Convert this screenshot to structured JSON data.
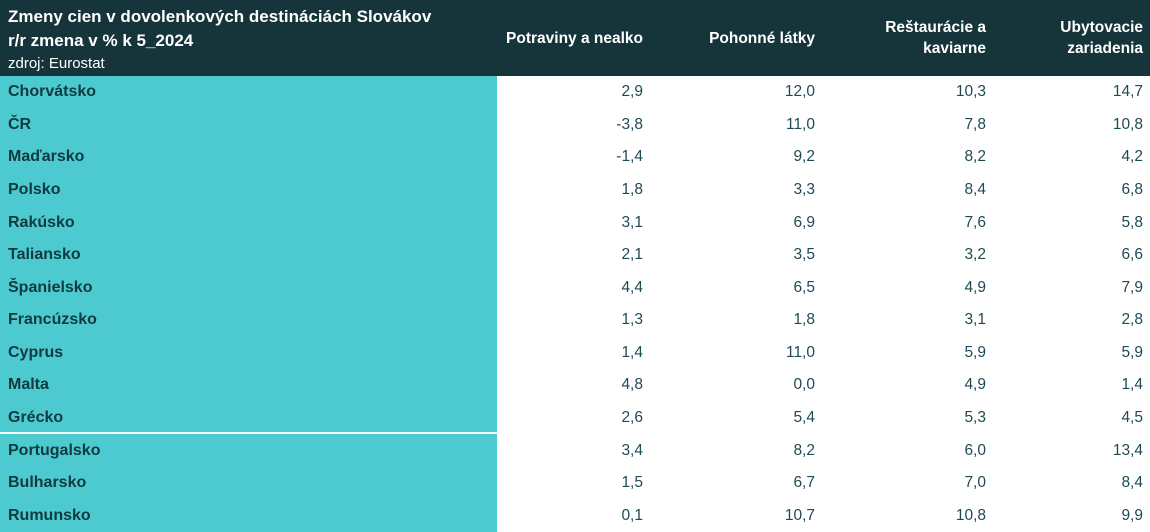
{
  "header": {
    "title_line1": "Zmeny cien v dovolenkových destináciách Slovákov",
    "title_line2": "r/r zmena v % k 5_2024",
    "source": "zdroj: Eurostat"
  },
  "columns": [
    "Potraviny a nealko",
    "Pohonné látky",
    "Reštaurácie a kaviarne",
    "Ubytovacie zariadenia"
  ],
  "table": {
    "separator_after_index": 10,
    "rows": [
      {
        "country": "Chorvátsko",
        "values": [
          "2,9",
          "12,0",
          "10,3",
          "14,7"
        ]
      },
      {
        "country": "ČR",
        "values": [
          "-3,8",
          "11,0",
          "7,8",
          "10,8"
        ]
      },
      {
        "country": "Maďarsko",
        "values": [
          "-1,4",
          "9,2",
          "8,2",
          "4,2"
        ]
      },
      {
        "country": "Polsko",
        "values": [
          "1,8",
          "3,3",
          "8,4",
          "6,8"
        ]
      },
      {
        "country": "Rakúsko",
        "values": [
          "3,1",
          "6,9",
          "7,6",
          "5,8"
        ]
      },
      {
        "country": "Taliansko",
        "values": [
          "2,1",
          "3,5",
          "3,2",
          "6,6"
        ]
      },
      {
        "country": "Španielsko",
        "values": [
          "4,4",
          "6,5",
          "4,9",
          "7,9"
        ]
      },
      {
        "country": "Francúzsko",
        "values": [
          "1,3",
          "1,8",
          "3,1",
          "2,8"
        ]
      },
      {
        "country": "Cyprus",
        "values": [
          "1,4",
          "11,0",
          "5,9",
          "5,9"
        ]
      },
      {
        "country": "Malta",
        "values": [
          "4,8",
          "0,0",
          "4,9",
          "1,4"
        ]
      },
      {
        "country": "Grécko",
        "values": [
          "2,6",
          "5,4",
          "5,3",
          "4,5"
        ]
      },
      {
        "country": "Portugalsko",
        "values": [
          "3,4",
          "8,2",
          "6,0",
          "13,4"
        ]
      },
      {
        "country": "Bulharsko",
        "values": [
          "1,5",
          "6,7",
          "7,0",
          "8,4"
        ]
      },
      {
        "country": "Rumunsko",
        "values": [
          "0,1",
          "10,7",
          "10,8",
          "9,9"
        ]
      }
    ]
  },
  "colors": {
    "header_bg": "#15353a",
    "name_column_bg": "#4dcad0",
    "name_text": "#0f3a40",
    "number_text": "#1e4a54",
    "header_text": "#ffffff"
  },
  "chart_data": {
    "type": "table",
    "title": "Zmeny cien v dovolenkových destináciách Slovákov r/r zmena v % k 5_2024",
    "source": "zdroj: Eurostat",
    "categories": [
      "Chorvátsko",
      "ČR",
      "Maďarsko",
      "Polsko",
      "Rakúsko",
      "Taliansko",
      "Španielsko",
      "Francúzsko",
      "Cyprus",
      "Malta",
      "Grécko",
      "Portugalsko",
      "Bulharsko",
      "Rumunsko"
    ],
    "series": [
      {
        "name": "Potraviny a nealko",
        "values": [
          2.9,
          -3.8,
          -1.4,
          1.8,
          3.1,
          2.1,
          4.4,
          1.3,
          1.4,
          4.8,
          2.6,
          3.4,
          1.5,
          0.1
        ]
      },
      {
        "name": "Pohonné látky",
        "values": [
          12.0,
          11.0,
          9.2,
          3.3,
          6.9,
          3.5,
          6.5,
          1.8,
          11.0,
          0.0,
          5.4,
          8.2,
          6.7,
          10.7
        ]
      },
      {
        "name": "Reštaurácie a kaviarne",
        "values": [
          10.3,
          7.8,
          8.2,
          8.4,
          7.6,
          3.2,
          4.9,
          3.1,
          5.9,
          4.9,
          5.3,
          6.0,
          7.0,
          10.8
        ]
      },
      {
        "name": "Ubytovacie zariadenia",
        "values": [
          14.7,
          10.8,
          4.2,
          6.8,
          5.8,
          6.6,
          7.9,
          2.8,
          5.9,
          1.4,
          4.5,
          13.4,
          8.4,
          9.9
        ]
      }
    ]
  }
}
